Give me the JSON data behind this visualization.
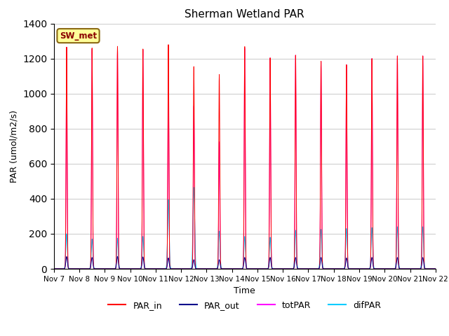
{
  "title": "Sherman Wetland PAR",
  "ylabel": "PAR (umol/m2/s)",
  "xlabel": "Time",
  "ylim": [
    0,
    1400
  ],
  "annotation": "SW_met",
  "line_colors": {
    "PAR_in": "#ff0000",
    "PAR_out": "#00008b",
    "totPAR": "#ff00ff",
    "difPAR": "#00ccff"
  },
  "background_color": "#ffffff",
  "grid_color": "#d0d0d0",
  "tick_labels": [
    "Nov 7",
    "Nov 8",
    "Nov 9",
    "Nov 10",
    "Nov 11",
    "Nov 12",
    "Nov 13",
    "Nov 14",
    "Nov 15",
    "Nov 16",
    "Nov 17",
    "Nov 18",
    "Nov 19",
    "Nov 20",
    "Nov 21",
    "Nov 22"
  ],
  "day_peaks_PAR_in": [
    1265,
    1260,
    1270,
    1255,
    1280,
    1155,
    1110,
    1270,
    1205,
    1220,
    1185,
    1165,
    1200,
    1215,
    1215
  ],
  "day_peaks_totPAR": [
    1265,
    1255,
    1255,
    1250,
    1105,
    930,
    725,
    1260,
    1205,
    1220,
    1185,
    1165,
    1200,
    1215,
    1215
  ],
  "day_peaks_difPAR": [
    200,
    170,
    175,
    185,
    395,
    465,
    215,
    185,
    180,
    220,
    225,
    230,
    235,
    240,
    240
  ],
  "day_peaks_PAR_out": [
    70,
    65,
    70,
    68,
    62,
    52,
    52,
    65,
    65,
    65,
    65,
    62,
    65,
    65,
    65
  ],
  "day_half_widths_in": [
    0.06,
    0.06,
    0.06,
    0.06,
    0.06,
    0.06,
    0.06,
    0.06,
    0.06,
    0.06,
    0.06,
    0.06,
    0.06,
    0.06,
    0.06
  ],
  "day_half_widths_tot": [
    0.06,
    0.06,
    0.06,
    0.06,
    0.06,
    0.06,
    0.06,
    0.06,
    0.06,
    0.06,
    0.06,
    0.06,
    0.06,
    0.06,
    0.06
  ],
  "day_half_widths_dif": [
    0.09,
    0.09,
    0.09,
    0.09,
    0.09,
    0.1,
    0.09,
    0.09,
    0.09,
    0.09,
    0.09,
    0.09,
    0.09,
    0.09,
    0.09
  ],
  "day_half_widths_out": [
    0.09,
    0.09,
    0.09,
    0.09,
    0.09,
    0.09,
    0.09,
    0.09,
    0.09,
    0.09,
    0.09,
    0.09,
    0.09,
    0.09,
    0.09
  ]
}
